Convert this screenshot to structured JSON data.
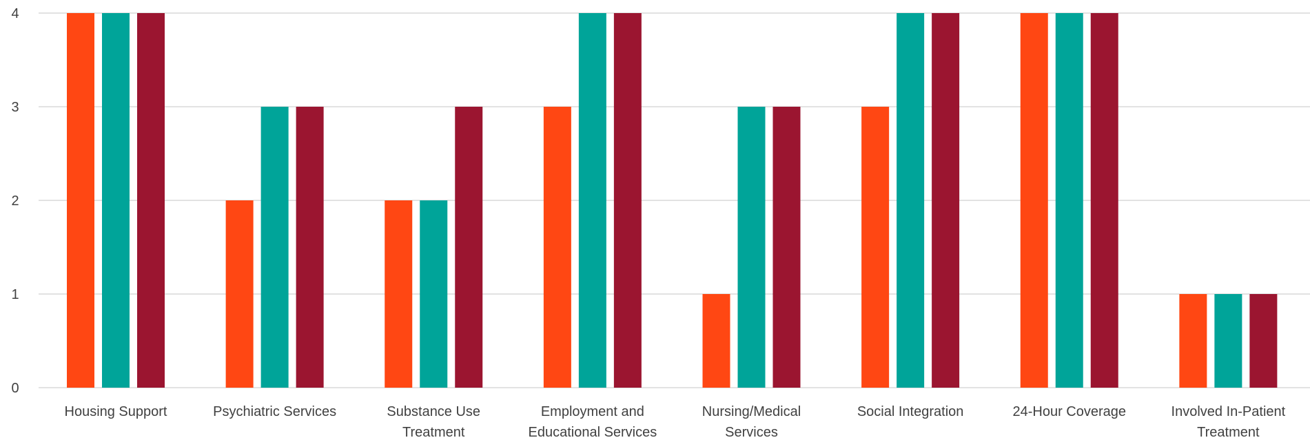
{
  "chart_data": {
    "type": "bar",
    "title": "",
    "xlabel": "",
    "ylabel": "",
    "ylim": [
      0,
      4
    ],
    "yticks": [
      0,
      1,
      2,
      3,
      4
    ],
    "grid": true,
    "legend": "none",
    "categories": [
      [
        "Housing Support"
      ],
      [
        "Psychiatric Services"
      ],
      [
        "Substance Use",
        "Treatment"
      ],
      [
        "Employment and",
        "Educational Services"
      ],
      [
        "Nursing/Medical",
        "Services"
      ],
      [
        "Social Integration"
      ],
      [
        "24-Hour Coverage"
      ],
      [
        "Involved In-Patient",
        "Treatment"
      ]
    ],
    "series": [
      {
        "color": "#FF4713",
        "values": [
          4,
          2,
          2,
          3,
          1,
          3,
          4,
          1
        ]
      },
      {
        "color": "#00A499",
        "values": [
          4,
          3,
          2,
          4,
          3,
          4,
          4,
          1
        ]
      },
      {
        "color": "#9B1530",
        "values": [
          4,
          3,
          3,
          4,
          3,
          4,
          4,
          1
        ]
      }
    ],
    "colors": {
      "grid": "#d9d9d9",
      "text": "#404040"
    }
  }
}
